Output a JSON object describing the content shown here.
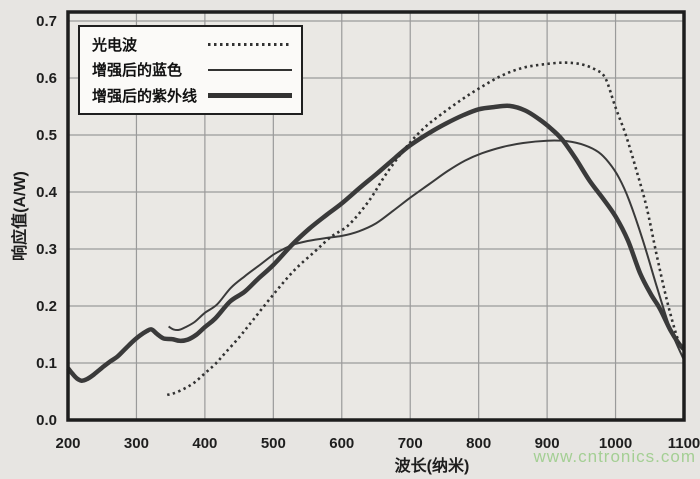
{
  "watermark": {
    "text": "www.cntronics.com",
    "color": "#a4cf94"
  },
  "colors": {
    "page_bg": "#e7e5e2",
    "plot_bg": "#eae8e4",
    "grid": "#9a9a9a",
    "border": "#1d1d1d",
    "curve": "#3a3a3a",
    "text": "#1e1e1e",
    "legend_bg": "#fbfaf8",
    "watermark": "#a4cf94"
  },
  "chart_data": {
    "type": "line",
    "title": "",
    "xlabel": "波长(纳米)",
    "ylabel": "响应值(A/W)",
    "xlim": [
      200,
      1100
    ],
    "ylim": [
      0,
      0.7
    ],
    "x_ticks": [
      200,
      300,
      400,
      500,
      600,
      700,
      800,
      900,
      1000,
      1100
    ],
    "y_ticks": [
      "0.0",
      "0.1",
      "0.2",
      "0.3",
      "0.4",
      "0.5",
      "0.6",
      "0.7"
    ],
    "grid": true,
    "legend_position": "top-left",
    "series": [
      {
        "name": "光电波",
        "style": "dotted",
        "stroke_width": 2.6,
        "color": "#323232",
        "points": [
          [
            345,
            0.044
          ],
          [
            355,
            0.047
          ],
          [
            370,
            0.055
          ],
          [
            385,
            0.066
          ],
          [
            400,
            0.082
          ],
          [
            415,
            0.098
          ],
          [
            430,
            0.118
          ],
          [
            450,
            0.145
          ],
          [
            470,
            0.175
          ],
          [
            500,
            0.22
          ],
          [
            530,
            0.262
          ],
          [
            560,
            0.295
          ],
          [
            585,
            0.322
          ],
          [
            610,
            0.342
          ],
          [
            640,
            0.385
          ],
          [
            665,
            0.432
          ],
          [
            695,
            0.48
          ],
          [
            720,
            0.512
          ],
          [
            745,
            0.536
          ],
          [
            775,
            0.562
          ],
          [
            805,
            0.585
          ],
          [
            835,
            0.605
          ],
          [
            865,
            0.618
          ],
          [
            895,
            0.624
          ],
          [
            925,
            0.627
          ],
          [
            950,
            0.624
          ],
          [
            970,
            0.615
          ],
          [
            985,
            0.6
          ],
          [
            1000,
            0.548
          ],
          [
            1015,
            0.5
          ],
          [
            1030,
            0.44
          ],
          [
            1045,
            0.375
          ],
          [
            1060,
            0.29
          ],
          [
            1075,
            0.21
          ],
          [
            1090,
            0.145
          ],
          [
            1100,
            0.118
          ]
        ]
      },
      {
        "name": "增强后的蓝色",
        "style": "solid-thin",
        "stroke_width": 2,
        "color": "#3a3a3a",
        "points": [
          [
            347,
            0.164
          ],
          [
            354,
            0.159
          ],
          [
            362,
            0.158
          ],
          [
            372,
            0.163
          ],
          [
            385,
            0.172
          ],
          [
            400,
            0.188
          ],
          [
            418,
            0.203
          ],
          [
            438,
            0.232
          ],
          [
            458,
            0.252
          ],
          [
            478,
            0.27
          ],
          [
            500,
            0.29
          ],
          [
            515,
            0.3
          ],
          [
            530,
            0.308
          ],
          [
            550,
            0.314
          ],
          [
            575,
            0.319
          ],
          [
            600,
            0.323
          ],
          [
            625,
            0.331
          ],
          [
            650,
            0.345
          ],
          [
            675,
            0.367
          ],
          [
            700,
            0.39
          ],
          [
            728,
            0.414
          ],
          [
            755,
            0.437
          ],
          [
            780,
            0.455
          ],
          [
            805,
            0.468
          ],
          [
            835,
            0.479
          ],
          [
            865,
            0.486
          ],
          [
            900,
            0.49
          ],
          [
            930,
            0.489
          ],
          [
            955,
            0.482
          ],
          [
            975,
            0.47
          ],
          [
            990,
            0.452
          ],
          [
            1005,
            0.425
          ],
          [
            1020,
            0.385
          ],
          [
            1040,
            0.315
          ],
          [
            1060,
            0.235
          ],
          [
            1080,
            0.16
          ],
          [
            1100,
            0.105
          ]
        ]
      },
      {
        "name": "增强后的紫外线",
        "style": "solid-thick",
        "stroke_width": 4.5,
        "color": "#3a3a3a",
        "points": [
          [
            200,
            0.091
          ],
          [
            206,
            0.082
          ],
          [
            213,
            0.073
          ],
          [
            220,
            0.069
          ],
          [
            228,
            0.072
          ],
          [
            238,
            0.08
          ],
          [
            250,
            0.092
          ],
          [
            262,
            0.103
          ],
          [
            272,
            0.111
          ],
          [
            283,
            0.124
          ],
          [
            295,
            0.138
          ],
          [
            305,
            0.148
          ],
          [
            315,
            0.156
          ],
          [
            322,
            0.159
          ],
          [
            330,
            0.151
          ],
          [
            340,
            0.143
          ],
          [
            352,
            0.142
          ],
          [
            363,
            0.139
          ],
          [
            375,
            0.141
          ],
          [
            388,
            0.15
          ],
          [
            400,
            0.163
          ],
          [
            415,
            0.178
          ],
          [
            437,
            0.208
          ],
          [
            458,
            0.225
          ],
          [
            478,
            0.248
          ],
          [
            500,
            0.272
          ],
          [
            527,
            0.307
          ],
          [
            552,
            0.335
          ],
          [
            578,
            0.36
          ],
          [
            600,
            0.38
          ],
          [
            627,
            0.408
          ],
          [
            652,
            0.433
          ],
          [
            678,
            0.46
          ],
          [
            700,
            0.482
          ],
          [
            727,
            0.503
          ],
          [
            752,
            0.52
          ],
          [
            778,
            0.535
          ],
          [
            800,
            0.545
          ],
          [
            822,
            0.549
          ],
          [
            845,
            0.551
          ],
          [
            868,
            0.543
          ],
          [
            888,
            0.528
          ],
          [
            905,
            0.512
          ],
          [
            922,
            0.492
          ],
          [
            942,
            0.458
          ],
          [
            962,
            0.42
          ],
          [
            982,
            0.388
          ],
          [
            1000,
            0.357
          ],
          [
            1018,
            0.315
          ],
          [
            1036,
            0.257
          ],
          [
            1052,
            0.22
          ],
          [
            1065,
            0.195
          ],
          [
            1080,
            0.158
          ],
          [
            1092,
            0.135
          ],
          [
            1100,
            0.124
          ]
        ]
      }
    ]
  }
}
